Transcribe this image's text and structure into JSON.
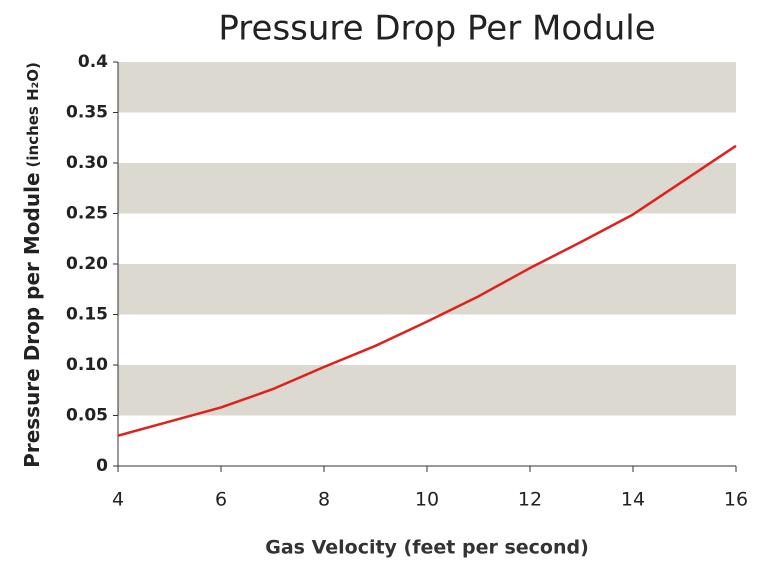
{
  "chart_data": {
    "type": "line",
    "title": "Pressure Drop Per Module",
    "x_label": "Gas Velocity (feet per second)",
    "y_label": "Pressure Drop per Module",
    "y_label_unit": "(inches H₂O)",
    "x": [
      4,
      5,
      6,
      7,
      8,
      9,
      10,
      11,
      12,
      13,
      14,
      15,
      16
    ],
    "series": [
      {
        "color": "#e0201b",
        "values": [
          0.03,
          0.044,
          0.058,
          0.076,
          0.098,
          0.119,
          0.143,
          0.168,
          0.196,
          0.222,
          0.249,
          0.283,
          0.317
        ]
      }
    ],
    "xlim": [
      4,
      16
    ],
    "xticks": [
      4,
      6,
      8,
      10,
      12,
      14,
      16
    ],
    "ylim": [
      0,
      0.4
    ],
    "yticks": [
      0,
      0.05,
      {
        "value": 0.1,
        "label": "0.10"
      },
      0.15,
      {
        "value": 0.2,
        "label": "0.20"
      },
      0.25,
      {
        "value": 0.3,
        "label": "0.30"
      },
      0.35,
      0.4
    ],
    "band_color": "#dcdad0"
  }
}
